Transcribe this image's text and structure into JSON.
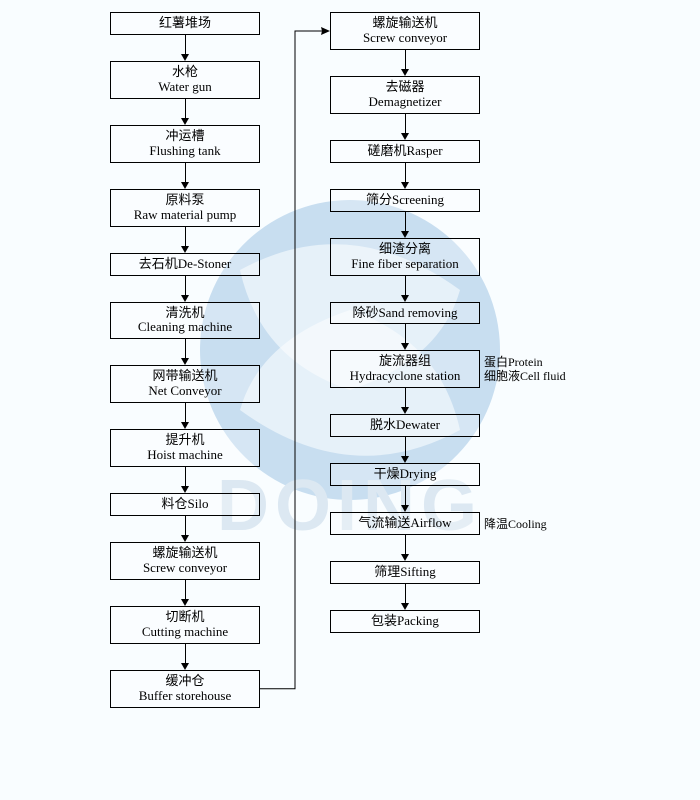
{
  "diagram": {
    "type": "flowchart",
    "orientation": "vertical-two-column-with-bottom-connector",
    "background_color": "#f9fdff",
    "box_border_color": "#000000",
    "box_min_width": 150,
    "font_family": "SimSun, serif",
    "box_fontsize": 13,
    "side_label_fontsize": 12,
    "arrow_color": "#000000",
    "watermark": {
      "text": "DOING",
      "has_logo_circle": true,
      "logo_fill": "#6fa6d6",
      "text_color": "#a9c3db",
      "opacity": 0.35
    },
    "left_column": [
      {
        "cn": "红薯堆场",
        "en": ""
      },
      {
        "cn": "水枪",
        "en": "Water gun"
      },
      {
        "cn": "冲运槽",
        "en": "Flushing tank"
      },
      {
        "cn": "原料泵",
        "en": "Raw material pump"
      },
      {
        "cn": "去石机",
        "en": "De-Stoner",
        "inline": true
      },
      {
        "cn": "清洗机",
        "en": "Cleaning machine"
      },
      {
        "cn": "网带输送机",
        "en": "Net Conveyor"
      },
      {
        "cn": "提升机",
        "en": "Hoist machine"
      },
      {
        "cn": "料仓",
        "en": "Silo",
        "inline": true
      },
      {
        "cn": "螺旋输送机",
        "en": "Screw conveyor"
      },
      {
        "cn": "切断机",
        "en": "Cutting machine"
      },
      {
        "cn": "缓冲仓",
        "en": "Buffer storehouse"
      }
    ],
    "right_column": [
      {
        "cn": "螺旋输送机",
        "en": "Screw conveyor"
      },
      {
        "cn": "去磁器",
        "en": "Demagnetizer"
      },
      {
        "cn": "磋磨机",
        "en": "Rasper",
        "inline": true
      },
      {
        "cn": "筛分",
        "en": "Screening",
        "inline": true
      },
      {
        "cn": "细渣分离",
        "en": "Fine fiber separation"
      },
      {
        "cn": "除砂",
        "en": "Sand removing",
        "inline": true
      },
      {
        "cn": "旋流器组",
        "en": "Hydracyclone station"
      },
      {
        "cn": "脱水",
        "en": "Dewater",
        "inline": true
      },
      {
        "cn": "干燥",
        "en": "Drying",
        "inline": true
      },
      {
        "cn": "气流输送",
        "en": "Airflow",
        "inline": true
      },
      {
        "cn": "筛理",
        "en": "Sifting",
        "inline": true
      },
      {
        "cn": "包装",
        "en": "Packing",
        "inline": true
      }
    ],
    "side_labels": [
      {
        "attach_to": "right_column.6",
        "lines": [
          "蛋白Protein",
          "细胞液Cell fluid"
        ],
        "position": "right"
      },
      {
        "attach_to": "right_column.9",
        "text": "降温Cooling",
        "position": "right"
      }
    ],
    "connector": {
      "from": "left_column.11",
      "to": "right_column.0",
      "path": "right-up-right-with-arrow"
    }
  }
}
